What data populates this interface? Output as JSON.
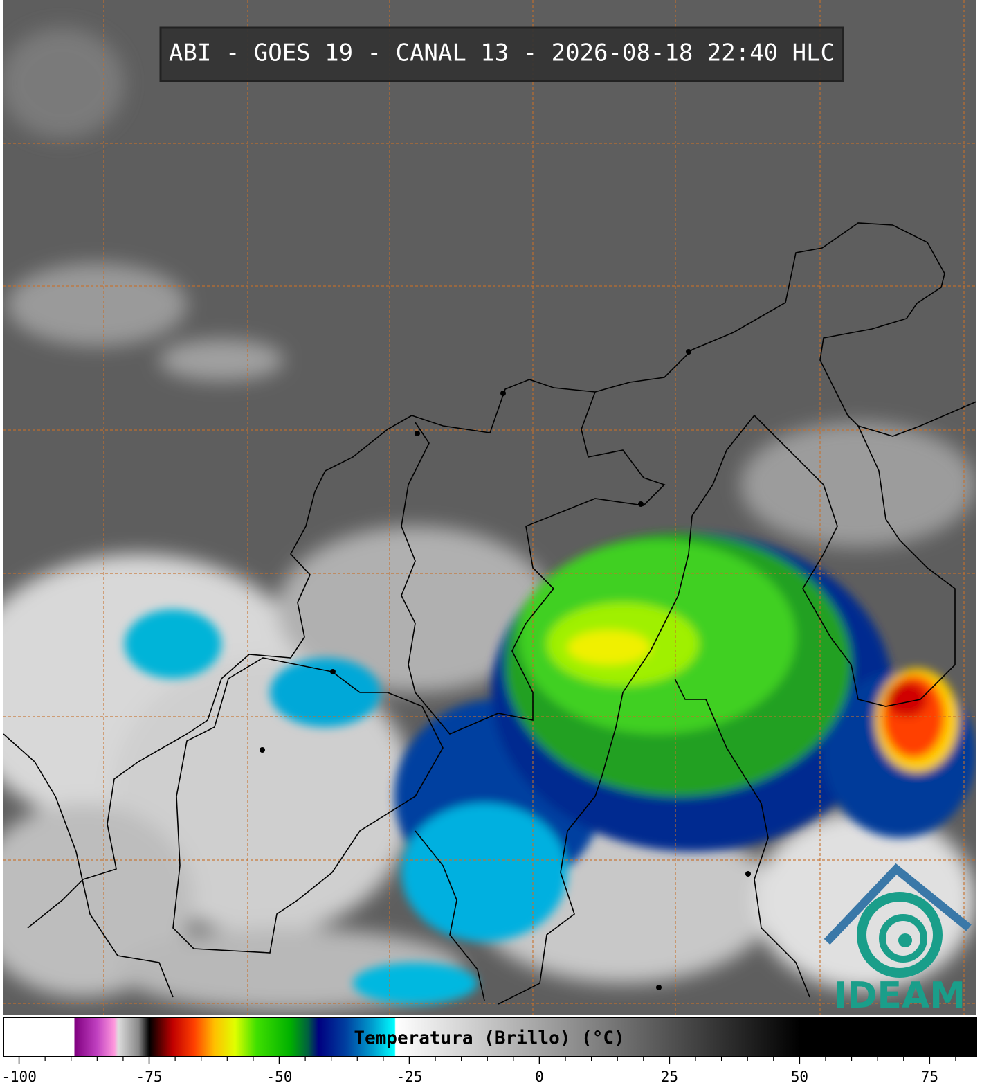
{
  "header": {
    "title": "ABI - GOES 19 - CANAL 13 - 2026-08-18 22:40 HLC"
  },
  "colorbar": {
    "label": "Temperatura (Brillo) (°C)",
    "range": [
      -103,
      84
    ],
    "ticks": [
      -100,
      -75,
      -50,
      -25,
      0,
      25,
      50,
      75
    ],
    "minor_ticks": [
      -95,
      -90,
      -85,
      -80,
      -70,
      -65,
      -60,
      -55,
      -45,
      -40,
      -35,
      -30,
      -20,
      -15,
      -10,
      -5,
      5,
      10,
      15,
      20,
      30,
      35,
      40,
      45,
      55,
      60,
      65,
      70,
      80
    ]
  },
  "logo": {
    "text": "IDEAM"
  }
}
